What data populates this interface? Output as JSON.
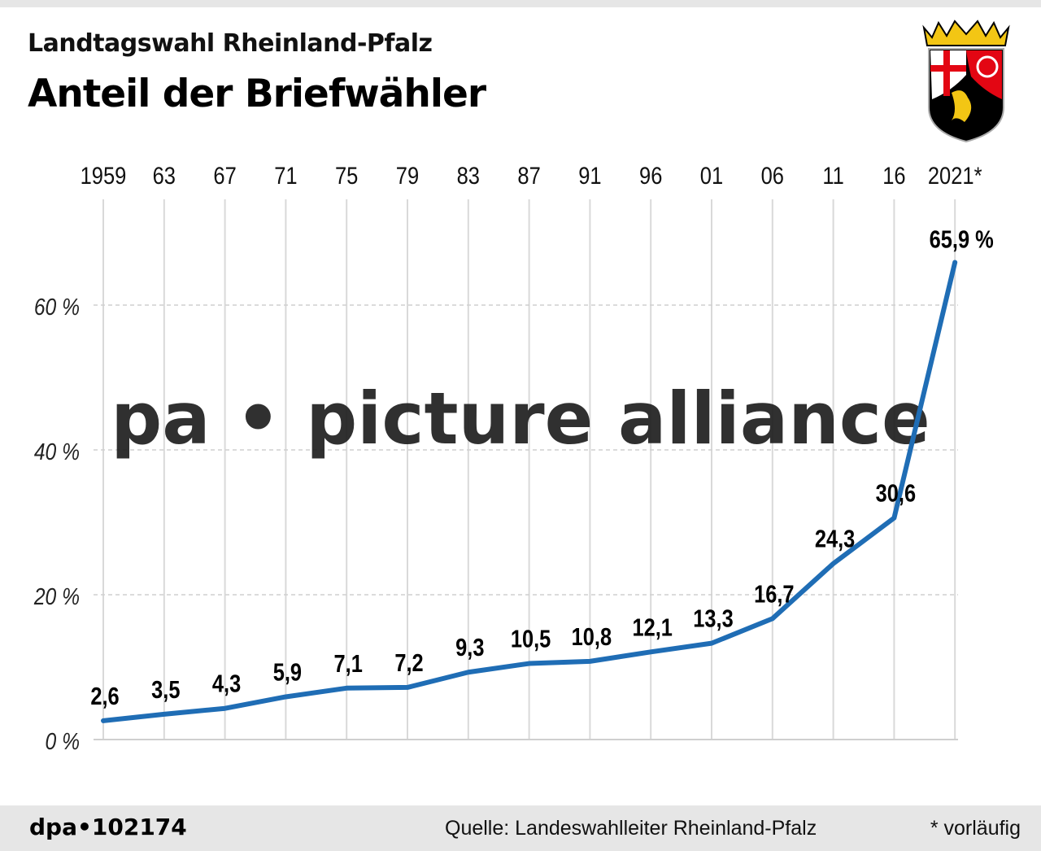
{
  "header": {
    "subtitle": "Landtagswahl Rheinland-Pfalz",
    "title": "Anteil der Briefwähler"
  },
  "footer": {
    "id": "dpa•102174",
    "source": "Quelle: Landeswahlleiter Rheinland-Pfalz",
    "note": "* vorläufig"
  },
  "watermark": "pa • picture alliance",
  "colors": {
    "line": "#1f6db5",
    "grid": "#d9d9d9",
    "text": "#000000",
    "watermark_dot": "#5cb46b"
  },
  "chart_data": {
    "type": "line",
    "title": "Anteil der Briefwähler",
    "categories": [
      "1959",
      "63",
      "67",
      "71",
      "75",
      "79",
      "83",
      "87",
      "91",
      "96",
      "01",
      "06",
      "11",
      "16",
      "2021*"
    ],
    "values": [
      2.6,
      3.5,
      4.3,
      5.9,
      7.1,
      7.2,
      9.3,
      10.5,
      10.8,
      12.1,
      13.3,
      16.7,
      24.3,
      30.6,
      65.9
    ],
    "data_labels": [
      "2,6",
      "3,5",
      "4,3",
      "5,9",
      "7,1",
      "7,2",
      "9,3",
      "10,5",
      "10,8",
      "12,1",
      "13,3",
      "16,7",
      "24,3",
      "30,6",
      "65,9 %"
    ],
    "y_ticks": [
      0,
      20,
      40,
      60
    ],
    "y_tick_labels": [
      "0 %",
      "20 %",
      "40 %",
      "60 %"
    ],
    "ylim": [
      0,
      75
    ],
    "x_axis_position": "top",
    "grid": true
  }
}
